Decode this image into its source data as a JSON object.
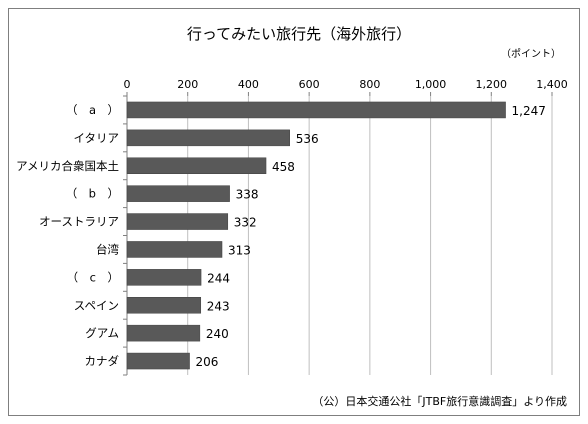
{
  "chart_data": {
    "type": "bar",
    "orientation": "horizontal",
    "title": "行ってみたい旅行先（海外旅行）",
    "unit_label": "（ポイント）",
    "categories": [
      "（　a　）",
      "イタリア",
      "アメリカ合衆国本土",
      "（　b　）",
      "オーストラリア",
      "台湾",
      "（　c　）",
      "スペイン",
      "グアム",
      "カナダ"
    ],
    "values": [
      1247,
      536,
      458,
      338,
      332,
      313,
      244,
      243,
      240,
      206
    ],
    "value_labels": [
      "1,247",
      "536",
      "458",
      "338",
      "332",
      "313",
      "244",
      "243",
      "240",
      "206"
    ],
    "xlim": [
      0,
      1400
    ],
    "ticks": [
      0,
      200,
      400,
      600,
      800,
      1000,
      1200,
      1400
    ],
    "tick_labels": [
      "0",
      "200",
      "400",
      "600",
      "800",
      "1,000",
      "1,200",
      "1,400"
    ],
    "grid": true,
    "bar_color": "#595959",
    "source": "（公）日本交通公社「JTBF旅行意識調査」より作成"
  }
}
